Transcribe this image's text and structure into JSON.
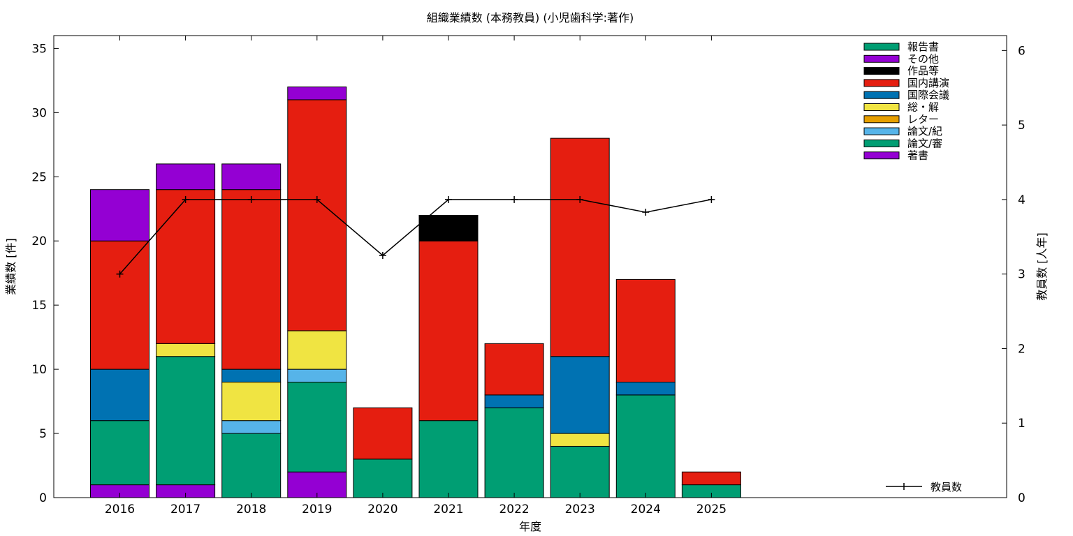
{
  "chart_data": {
    "type": "bar",
    "stacked": true,
    "title": "組織業績数 (本務教員) (小児歯科学:著作)",
    "xlabel": "年度",
    "ylabel": "業績数 [件]",
    "y2label": "教員数 [人年]",
    "categories": [
      "2016",
      "2017",
      "2018",
      "2019",
      "2020",
      "2021",
      "2022",
      "2023",
      "2024",
      "2025"
    ],
    "ylim": [
      0,
      36
    ],
    "yticks": [
      "0",
      "5",
      "10",
      "15",
      "20",
      "25",
      "30",
      "35"
    ],
    "y2lim": [
      0,
      6.2
    ],
    "y2ticks": [
      "0",
      "1",
      "2",
      "3",
      "4",
      "5",
      "6"
    ],
    "series": [
      {
        "name": "著書",
        "color": "#9400d3",
        "values": [
          1,
          1,
          0,
          2,
          0,
          0,
          0,
          0,
          0,
          0
        ]
      },
      {
        "name": "論文/審",
        "color": "#009e73",
        "values": [
          5,
          10,
          5,
          7,
          3,
          6,
          7,
          4,
          8,
          1
        ]
      },
      {
        "name": "論文/紀",
        "color": "#56b4e9",
        "values": [
          0,
          0,
          1,
          1,
          0,
          0,
          0,
          0,
          0,
          0
        ]
      },
      {
        "name": "レター",
        "color": "#e69f00",
        "values": [
          0,
          0,
          0,
          0,
          0,
          0,
          0,
          0,
          0,
          0
        ]
      },
      {
        "name": "総・解",
        "color": "#f0e442",
        "values": [
          0,
          1,
          3,
          3,
          0,
          0,
          0,
          1,
          0,
          0
        ]
      },
      {
        "name": "国際会議",
        "color": "#0072b2",
        "values": [
          4,
          0,
          1,
          0,
          0,
          0,
          1,
          6,
          1,
          0
        ]
      },
      {
        "name": "国内講演",
        "color": "#e51e10",
        "values": [
          10,
          12,
          14,
          18,
          4,
          14,
          4,
          17,
          8,
          1
        ]
      },
      {
        "name": "作品等",
        "color": "#000000",
        "values": [
          0,
          0,
          0,
          0,
          0,
          2,
          0,
          0,
          0,
          0
        ]
      },
      {
        "name": "その他",
        "color": "#9400d3",
        "values": [
          4,
          2,
          2,
          1,
          0,
          0,
          0,
          0,
          0,
          0
        ]
      },
      {
        "name": "報告書",
        "color": "#009e73",
        "values": [
          0,
          0,
          0,
          0,
          0,
          0,
          0,
          0,
          0,
          0
        ]
      }
    ],
    "line_series": {
      "name": "教員数",
      "color": "#000000",
      "axis": "y2",
      "values": [
        3.0,
        4.0,
        4.0,
        4.0,
        3.25,
        4.0,
        4.0,
        4.0,
        3.83,
        4.0
      ]
    },
    "legend_order": [
      "報告書",
      "その他",
      "作品等",
      "国内講演",
      "国際会議",
      "総・解",
      "レター",
      "論文/紀",
      "論文/審",
      "著書"
    ],
    "legend_position": "top-right",
    "line_legend_position": "bottom-right",
    "grid": false
  }
}
